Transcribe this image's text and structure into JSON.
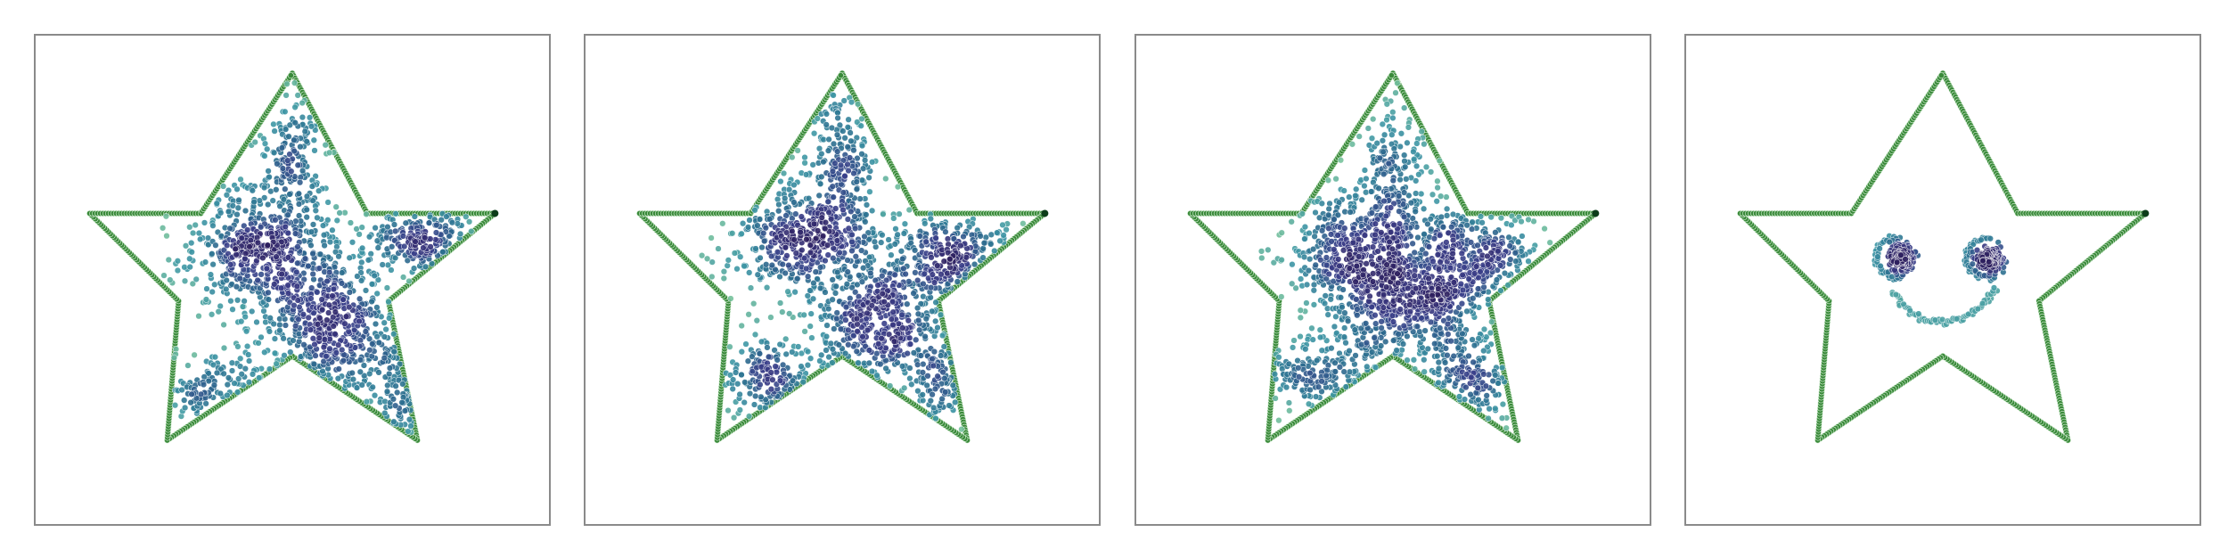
{
  "chart_data": [
    {
      "type": "scatter",
      "panel": 1,
      "xlim": [
        0,
        1
      ],
      "ylim": [
        0,
        1
      ],
      "grid": false,
      "star_outline": {
        "color": "#3a8a3a",
        "outer_vertices": [
          [
            0.5,
            0.92
          ],
          [
            0.892,
            0.635
          ],
          [
            0.742,
            0.174
          ],
          [
            0.258,
            0.174
          ],
          [
            0.108,
            0.635
          ]
        ],
        "inner_vertices": [
          [
            0.323,
            0.635
          ],
          [
            0.645,
            0.635
          ],
          [
            0.686,
            0.457
          ],
          [
            0.5,
            0.345
          ],
          [
            0.28,
            0.457
          ]
        ]
      },
      "point_colormap": [
        "#7ec89a",
        "#3d96a5",
        "#2c6e8f",
        "#3a3f8a",
        "#2e1f5e"
      ],
      "clusters": [
        {
          "center": [
            0.435,
            0.565
          ],
          "sd": [
            0.075,
            0.065
          ],
          "count": 520
        },
        {
          "center": [
            0.575,
            0.405
          ],
          "sd": [
            0.07,
            0.07
          ],
          "count": 520
        },
        {
          "center": [
            0.745,
            0.575
          ],
          "sd": [
            0.06,
            0.04
          ],
          "count": 200
        },
        {
          "center": [
            0.5,
            0.74
          ],
          "sd": [
            0.035,
            0.08
          ],
          "count": 170
        },
        {
          "center": [
            0.36,
            0.28
          ],
          "sd": [
            0.06,
            0.04
          ],
          "count": 110
        },
        {
          "center": [
            0.71,
            0.27
          ],
          "sd": [
            0.03,
            0.06
          ],
          "count": 80
        }
      ]
    },
    {
      "type": "scatter",
      "panel": 2,
      "xlim": [
        0,
        1
      ],
      "ylim": [
        0,
        1
      ],
      "grid": false,
      "star_outline": {
        "color": "#3a8a3a",
        "outer_vertices": [
          [
            0.5,
            0.92
          ],
          [
            0.892,
            0.635
          ],
          [
            0.742,
            0.174
          ],
          [
            0.258,
            0.174
          ],
          [
            0.108,
            0.635
          ]
        ],
        "inner_vertices": [
          [
            0.323,
            0.635
          ],
          [
            0.645,
            0.635
          ],
          [
            0.686,
            0.457
          ],
          [
            0.5,
            0.345
          ],
          [
            0.28,
            0.457
          ]
        ]
      },
      "point_colormap": [
        "#7ec89a",
        "#3d96a5",
        "#2c6e8f",
        "#3a3f8a",
        "#2e1f5e"
      ],
      "clusters": [
        {
          "center": [
            0.42,
            0.58
          ],
          "sd": [
            0.07,
            0.06
          ],
          "count": 430
        },
        {
          "center": [
            0.565,
            0.42
          ],
          "sd": [
            0.07,
            0.07
          ],
          "count": 480
        },
        {
          "center": [
            0.71,
            0.56
          ],
          "sd": [
            0.06,
            0.045
          ],
          "count": 240
        },
        {
          "center": [
            0.5,
            0.74
          ],
          "sd": [
            0.035,
            0.08
          ],
          "count": 200
        },
        {
          "center": [
            0.36,
            0.29
          ],
          "sd": [
            0.06,
            0.045
          ],
          "count": 160
        },
        {
          "center": [
            0.69,
            0.29
          ],
          "sd": [
            0.035,
            0.06
          ],
          "count": 100
        }
      ]
    },
    {
      "type": "scatter",
      "panel": 3,
      "xlim": [
        0,
        1
      ],
      "ylim": [
        0,
        1
      ],
      "grid": false,
      "star_outline": {
        "color": "#3a8a3a",
        "outer_vertices": [
          [
            0.5,
            0.92
          ],
          [
            0.892,
            0.635
          ],
          [
            0.742,
            0.174
          ],
          [
            0.258,
            0.174
          ],
          [
            0.108,
            0.635
          ]
        ],
        "inner_vertices": [
          [
            0.323,
            0.635
          ],
          [
            0.645,
            0.635
          ],
          [
            0.686,
            0.457
          ],
          [
            0.5,
            0.345
          ],
          [
            0.28,
            0.457
          ]
        ]
      },
      "point_colormap": [
        "#7ec89a",
        "#3d96a5",
        "#2c6e8f",
        "#3a3f8a",
        "#2e1f5e"
      ],
      "clusters": [
        {
          "center": [
            0.43,
            0.555
          ],
          "sd": [
            0.075,
            0.07
          ],
          "count": 480
        },
        {
          "center": [
            0.535,
            0.43
          ],
          "sd": [
            0.08,
            0.075
          ],
          "count": 520
        },
        {
          "center": [
            0.65,
            0.545
          ],
          "sd": [
            0.07,
            0.06
          ],
          "count": 380
        },
        {
          "center": [
            0.5,
            0.72
          ],
          "sd": [
            0.04,
            0.08
          ],
          "count": 180
        },
        {
          "center": [
            0.36,
            0.3
          ],
          "sd": [
            0.06,
            0.05
          ],
          "count": 150
        },
        {
          "center": [
            0.66,
            0.3
          ],
          "sd": [
            0.05,
            0.05
          ],
          "count": 130
        }
      ]
    },
    {
      "type": "scatter",
      "panel": 4,
      "xlim": [
        0,
        1
      ],
      "ylim": [
        0,
        1
      ],
      "grid": false,
      "star_outline": {
        "color": "#3a8a3a",
        "outer_vertices": [
          [
            0.5,
            0.92
          ],
          [
            0.892,
            0.635
          ],
          [
            0.742,
            0.174
          ],
          [
            0.258,
            0.174
          ],
          [
            0.108,
            0.635
          ]
        ],
        "inner_vertices": [
          [
            0.323,
            0.635
          ],
          [
            0.645,
            0.635
          ],
          [
            0.686,
            0.457
          ],
          [
            0.5,
            0.345
          ],
          [
            0.28,
            0.457
          ]
        ]
      },
      "point_colormap": [
        "#7ec89a",
        "#3d96a5",
        "#2c6e8f",
        "#3a3f8a",
        "#2e1f5e"
      ],
      "smiley": {
        "left_eye": {
          "center": [
            0.42,
            0.545
          ],
          "sd": 0.013,
          "count": 140
        },
        "right_eye": {
          "center": [
            0.595,
            0.545
          ],
          "sd": 0.013,
          "count": 140
        },
        "left_eye_ring": {
          "center": [
            0.41,
            0.545
          ],
          "radius": 0.04,
          "from_deg": 80,
          "to_deg": 290,
          "count": 40
        },
        "right_eye_ring": {
          "center": [
            0.585,
            0.545
          ],
          "radius": 0.04,
          "from_deg": 80,
          "to_deg": 290,
          "count": 40
        },
        "smile": {
          "center": [
            0.5,
            0.52
          ],
          "radius": 0.105,
          "from_deg": 205,
          "to_deg": 340,
          "count": 70
        }
      }
    }
  ]
}
